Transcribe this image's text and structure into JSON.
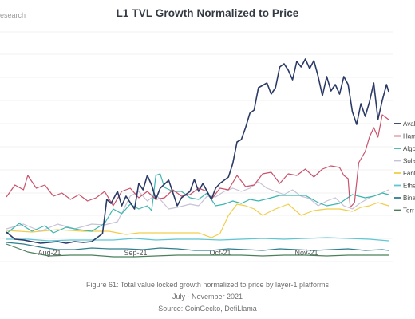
{
  "header": {
    "brand": "esearch",
    "title": "L1 TVL Growth Normalized to Price"
  },
  "caption": {
    "line1": "Figure 61: Total value locked growth normalized to price by layer-1 platforms",
    "line2": "July - November 2021",
    "line3": "Source: CoinGecko, DefiLlama"
  },
  "chart_data": {
    "type": "line",
    "title": "L1 TVL Growth Normalized to Price",
    "xlabel": "",
    "ylabel": "",
    "x_ticks": [
      "Aug-21",
      "Sep-21",
      "Oct-21",
      "Nov-21"
    ],
    "x_range": [
      "2021-07-20",
      "2021-11-25"
    ],
    "grid": "horizontal",
    "legend_position": "right",
    "series": [
      {
        "name": "Avala",
        "color": "#2b3a67",
        "values": [
          [
            0,
            291
          ],
          [
            4,
            300
          ],
          [
            8,
            301
          ],
          [
            12,
            303
          ],
          [
            16,
            305
          ],
          [
            20,
            304
          ],
          [
            24,
            303
          ],
          [
            28,
            305
          ],
          [
            32,
            303
          ],
          [
            36,
            304
          ],
          [
            40,
            303
          ],
          [
            45,
            293
          ],
          [
            47,
            250
          ],
          [
            49,
            255
          ],
          [
            52,
            240
          ],
          [
            54,
            258
          ],
          [
            56,
            246
          ],
          [
            60,
            262
          ],
          [
            62,
            230
          ],
          [
            64,
            238
          ],
          [
            66,
            220
          ],
          [
            68,
            232
          ],
          [
            70,
            250
          ],
          [
            72,
            236
          ],
          [
            76,
            226
          ],
          [
            80,
            258
          ],
          [
            82,
            248
          ],
          [
            86,
            240
          ],
          [
            88,
            225
          ],
          [
            90,
            240
          ],
          [
            92,
            230
          ],
          [
            96,
            250
          ],
          [
            98,
            236
          ],
          [
            100,
            230
          ],
          [
            104,
            222
          ],
          [
            106,
            205
          ],
          [
            108,
            178
          ],
          [
            110,
            175
          ],
          [
            112,
            160
          ],
          [
            114,
            142
          ],
          [
            116,
            138
          ],
          [
            118,
            110
          ],
          [
            122,
            104
          ],
          [
            124,
            118
          ],
          [
            126,
            110
          ],
          [
            128,
            84
          ],
          [
            130,
            80
          ],
          [
            132,
            88
          ],
          [
            134,
            100
          ],
          [
            136,
            77
          ],
          [
            138,
            84
          ],
          [
            140,
            74
          ],
          [
            142,
            86
          ],
          [
            144,
            76
          ],
          [
            146,
            96
          ],
          [
            148,
            120
          ],
          [
            150,
            96
          ],
          [
            152,
            114
          ],
          [
            154,
            106
          ],
          [
            156,
            118
          ],
          [
            158,
            96
          ],
          [
            160,
            106
          ],
          [
            162,
            140
          ],
          [
            164,
            156
          ],
          [
            166,
            130
          ],
          [
            168,
            146
          ],
          [
            170,
            128
          ],
          [
            172,
            104
          ],
          [
            174,
            150
          ],
          [
            176,
            126
          ],
          [
            178,
            106
          ],
          [
            179,
            115
          ]
        ]
      },
      {
        "name": "Harr",
        "color": "#c9526b",
        "values": [
          [
            0,
            247
          ],
          [
            4,
            232
          ],
          [
            8,
            238
          ],
          [
            10,
            220
          ],
          [
            14,
            236
          ],
          [
            18,
            232
          ],
          [
            22,
            246
          ],
          [
            26,
            242
          ],
          [
            30,
            250
          ],
          [
            34,
            244
          ],
          [
            38,
            252
          ],
          [
            42,
            248
          ],
          [
            46,
            240
          ],
          [
            50,
            258
          ],
          [
            54,
            240
          ],
          [
            58,
            236
          ],
          [
            62,
            248
          ],
          [
            66,
            240
          ],
          [
            70,
            250
          ],
          [
            74,
            248
          ],
          [
            78,
            238
          ],
          [
            82,
            246
          ],
          [
            86,
            244
          ],
          [
            90,
            236
          ],
          [
            94,
            240
          ],
          [
            96,
            250
          ],
          [
            100,
            236
          ],
          [
            104,
            238
          ],
          [
            108,
            220
          ],
          [
            112,
            234
          ],
          [
            116,
            232
          ],
          [
            120,
            218
          ],
          [
            124,
            216
          ],
          [
            128,
            230
          ],
          [
            132,
            218
          ],
          [
            136,
            220
          ],
          [
            140,
            212
          ],
          [
            144,
            222
          ],
          [
            148,
            212
          ],
          [
            152,
            208
          ],
          [
            156,
            210
          ],
          [
            158,
            220
          ],
          [
            160,
            224
          ],
          [
            161,
            260
          ],
          [
            163,
            254
          ],
          [
            165,
            204
          ],
          [
            168,
            190
          ],
          [
            170,
            172
          ],
          [
            172,
            160
          ],
          [
            174,
            172
          ],
          [
            176,
            144
          ],
          [
            179,
            150
          ]
        ]
      },
      {
        "name": "Algo",
        "color": "#3bb7b0",
        "values": [
          [
            0,
            293
          ],
          [
            6,
            280
          ],
          [
            12,
            290
          ],
          [
            18,
            283
          ],
          [
            22,
            292
          ],
          [
            28,
            285
          ],
          [
            34,
            288
          ],
          [
            40,
            290
          ],
          [
            46,
            280
          ],
          [
            50,
            262
          ],
          [
            54,
            268
          ],
          [
            58,
            256
          ],
          [
            62,
            262
          ],
          [
            66,
            258
          ],
          [
            68,
            264
          ],
          [
            70,
            220
          ],
          [
            72,
            218
          ],
          [
            74,
            235
          ],
          [
            78,
            240
          ],
          [
            82,
            240
          ],
          [
            86,
            248
          ],
          [
            90,
            250
          ],
          [
            94,
            242
          ],
          [
            98,
            258
          ],
          [
            102,
            256
          ],
          [
            106,
            252
          ],
          [
            110,
            255
          ],
          [
            114,
            250
          ],
          [
            118,
            252
          ],
          [
            124,
            248
          ],
          [
            128,
            245
          ],
          [
            134,
            245
          ],
          [
            140,
            245
          ],
          [
            146,
            254
          ],
          [
            150,
            258
          ],
          [
            156,
            255
          ],
          [
            162,
            244
          ],
          [
            168,
            248
          ],
          [
            172,
            246
          ],
          [
            176,
            242
          ],
          [
            179,
            244
          ]
        ]
      },
      {
        "name": "Sola",
        "color": "#c7c2d6",
        "values": [
          [
            0,
            287
          ],
          [
            8,
            281
          ],
          [
            16,
            290
          ],
          [
            24,
            281
          ],
          [
            32,
            287
          ],
          [
            40,
            281
          ],
          [
            46,
            282
          ],
          [
            52,
            278
          ],
          [
            58,
            246
          ],
          [
            62,
            240
          ],
          [
            66,
            252
          ],
          [
            70,
            244
          ],
          [
            76,
            262
          ],
          [
            80,
            260
          ],
          [
            86,
            256
          ],
          [
            90,
            258
          ],
          [
            94,
            246
          ],
          [
            98,
            247
          ],
          [
            102,
            240
          ],
          [
            106,
            236
          ],
          [
            110,
            240
          ],
          [
            114,
            236
          ],
          [
            118,
            228
          ],
          [
            122,
            236
          ],
          [
            126,
            240
          ],
          [
            130,
            244
          ],
          [
            134,
            238
          ],
          [
            138,
            246
          ],
          [
            142,
            249
          ],
          [
            146,
            258
          ],
          [
            150,
            252
          ],
          [
            154,
            248
          ],
          [
            158,
            258
          ],
          [
            162,
            262
          ],
          [
            166,
            254
          ],
          [
            170,
            248
          ],
          [
            174,
            244
          ],
          [
            179,
            238
          ]
        ]
      },
      {
        "name": "Fant",
        "color": "#f2cd4a",
        "values": [
          [
            0,
            289
          ],
          [
            12,
            291
          ],
          [
            24,
            288
          ],
          [
            36,
            290
          ],
          [
            48,
            290
          ],
          [
            56,
            294
          ],
          [
            62,
            292
          ],
          [
            70,
            292
          ],
          [
            80,
            292
          ],
          [
            90,
            292
          ],
          [
            96,
            298
          ],
          [
            100,
            293
          ],
          [
            104,
            270
          ],
          [
            108,
            256
          ],
          [
            112,
            258
          ],
          [
            116,
            262
          ],
          [
            120,
            270
          ],
          [
            126,
            262
          ],
          [
            132,
            256
          ],
          [
            138,
            270
          ],
          [
            144,
            264
          ],
          [
            150,
            262
          ],
          [
            156,
            262
          ],
          [
            162,
            265
          ],
          [
            166,
            260
          ],
          [
            170,
            258
          ],
          [
            174,
            254
          ],
          [
            179,
            258
          ]
        ]
      },
      {
        "name": "Ethe",
        "color": "#5fc7d4",
        "values": [
          [
            0,
            300
          ],
          [
            10,
            300
          ],
          [
            20,
            302
          ],
          [
            30,
            301
          ],
          [
            40,
            301
          ],
          [
            50,
            301
          ],
          [
            60,
            299
          ],
          [
            70,
            301
          ],
          [
            80,
            300
          ],
          [
            90,
            300
          ],
          [
            100,
            301
          ],
          [
            110,
            300
          ],
          [
            120,
            299
          ],
          [
            130,
            300
          ],
          [
            140,
            299
          ],
          [
            150,
            298
          ],
          [
            160,
            299
          ],
          [
            170,
            300
          ],
          [
            179,
            302
          ]
        ]
      },
      {
        "name": "Bina",
        "color": "#2f7f8c",
        "values": [
          [
            0,
            304
          ],
          [
            8,
            306
          ],
          [
            16,
            310
          ],
          [
            24,
            313
          ],
          [
            32,
            313
          ],
          [
            40,
            311
          ],
          [
            48,
            312
          ],
          [
            56,
            312
          ],
          [
            64,
            313
          ],
          [
            72,
            311
          ],
          [
            80,
            312
          ],
          [
            88,
            314
          ],
          [
            96,
            314
          ],
          [
            104,
            312
          ],
          [
            112,
            313
          ],
          [
            120,
            314
          ],
          [
            128,
            312
          ],
          [
            136,
            313
          ],
          [
            144,
            314
          ],
          [
            152,
            313
          ],
          [
            160,
            312
          ],
          [
            168,
            314
          ],
          [
            176,
            313
          ],
          [
            179,
            314
          ]
        ]
      },
      {
        "name": "Terr",
        "color": "#4a7f5a",
        "values": [
          [
            0,
            306
          ],
          [
            10,
            316
          ],
          [
            20,
            321
          ],
          [
            30,
            320
          ],
          [
            40,
            320
          ],
          [
            50,
            322
          ],
          [
            60,
            322
          ],
          [
            70,
            321
          ],
          [
            80,
            320
          ],
          [
            90,
            320
          ],
          [
            100,
            320
          ],
          [
            110,
            320
          ],
          [
            120,
            321
          ],
          [
            130,
            320
          ],
          [
            140,
            320
          ],
          [
            150,
            321
          ],
          [
            160,
            320
          ],
          [
            170,
            320
          ],
          [
            179,
            320
          ]
        ]
      }
    ]
  }
}
